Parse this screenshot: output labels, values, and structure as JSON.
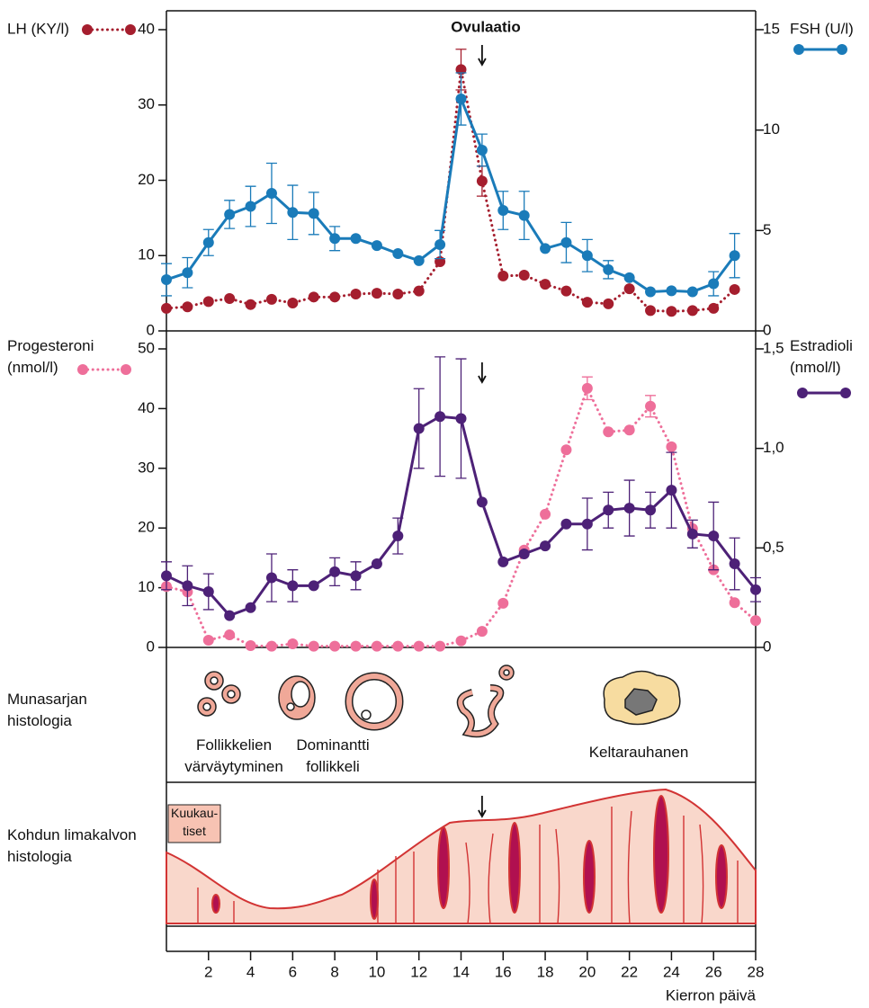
{
  "chart_data": [
    {
      "type": "line",
      "annotations": [
        {
          "text": "Ovulaatio",
          "x": 15
        }
      ],
      "xlim": [
        0,
        28
      ],
      "x": [
        0,
        1,
        2,
        3,
        4,
        5,
        6,
        7,
        8,
        9,
        10,
        11,
        12,
        13,
        14,
        15,
        16,
        17,
        18,
        19,
        20,
        21,
        22,
        23,
        24,
        25,
        26,
        27
      ],
      "ylim": [
        0,
        40
      ],
      "yticks": [
        0,
        10,
        20,
        30,
        40
      ],
      "y2lim": [
        0,
        15
      ],
      "y2ticks": [
        0,
        5,
        10,
        15
      ],
      "series": [
        {
          "name": "LH (KY/l)",
          "color": "#a51e2e",
          "linestyle": "dotted",
          "values": [
            3.0,
            3.2,
            3.9,
            4.3,
            3.5,
            4.2,
            3.7,
            4.5,
            4.5,
            4.9,
            5.0,
            4.9,
            5.3,
            9.2,
            34.7,
            19.9,
            7.3,
            7.4,
            6.2,
            5.3,
            3.8,
            3.6,
            5.6,
            2.7,
            2.6,
            2.7,
            3.0,
            5.5
          ],
          "errors": [
            null,
            null,
            null,
            null,
            null,
            null,
            null,
            null,
            null,
            null,
            null,
            null,
            null,
            null,
            2.7,
            2.0,
            null,
            null,
            null,
            null,
            null,
            null,
            null,
            null,
            null,
            null,
            null,
            null
          ]
        },
        {
          "name": "FSH (U/l)",
          "color": "#1a7bb9",
          "linestyle": "solid",
          "axis": "y2",
          "values": [
            2.55,
            2.9,
            4.4,
            5.8,
            6.2,
            6.85,
            5.9,
            5.85,
            4.6,
            4.6,
            4.25,
            3.85,
            3.5,
            4.3,
            11.55,
            9.0,
            6.0,
            5.75,
            4.1,
            4.4,
            3.75,
            3.05,
            2.65,
            1.95,
            2.0,
            1.95,
            2.35,
            3.75
          ],
          "errors": [
            0.8,
            0.75,
            0.65,
            0.7,
            1.0,
            1.5,
            1.35,
            1.05,
            0.6,
            null,
            null,
            null,
            null,
            0.7,
            1.3,
            0.8,
            0.95,
            1.2,
            null,
            1.0,
            0.8,
            0.45,
            null,
            null,
            null,
            null,
            0.6,
            1.1
          ]
        }
      ]
    },
    {
      "type": "line",
      "xlim": [
        0,
        28
      ],
      "xticks": [
        2,
        4,
        6,
        8,
        10,
        12,
        14,
        16,
        18,
        20,
        22,
        24,
        26,
        28
      ],
      "xlabel": "Kierron päivä",
      "annotations": [
        {
          "x": 15
        }
      ],
      "x": [
        0,
        1,
        2,
        3,
        4,
        5,
        6,
        7,
        8,
        9,
        10,
        11,
        12,
        13,
        14,
        15,
        16,
        17,
        18,
        19,
        20,
        21,
        22,
        23,
        24,
        25,
        26,
        27,
        28
      ],
      "ylim": [
        0,
        50
      ],
      "yticks": [
        0,
        10,
        20,
        30,
        40,
        50
      ],
      "y2lim": [
        0,
        1.5
      ],
      "y2ticks": [
        0,
        {
          "value": 0.5,
          "label": "0,5"
        },
        {
          "value": 1.0,
          "label": "1,0"
        },
        {
          "value": 1.5,
          "label": "1,5"
        }
      ],
      "series": [
        {
          "name": "Progesteroni (nmol/l)",
          "color": "#ee6f9a",
          "linestyle": "dotted",
          "values": [
            10.2,
            9.3,
            1.2,
            2.1,
            0.3,
            0.2,
            0.6,
            0.2,
            0.2,
            0.2,
            0.2,
            0.2,
            0.2,
            0.2,
            1.1,
            2.7,
            7.4,
            16.3,
            22.3,
            33.1,
            43.4,
            36.1,
            36.4,
            40.4,
            33.6,
            19.9,
            13.0,
            7.5,
            4.5
          ],
          "errors": [
            null,
            null,
            null,
            null,
            null,
            null,
            null,
            null,
            null,
            null,
            null,
            null,
            null,
            null,
            null,
            null,
            null,
            null,
            null,
            null,
            1.9,
            null,
            null,
            1.8,
            null,
            null,
            null,
            null,
            null
          ]
        },
        {
          "name": "Estradioli (nmol/l)",
          "color": "#4d2177",
          "linestyle": "solid",
          "axis": "y2",
          "values": [
            0.36,
            0.31,
            0.28,
            0.16,
            0.2,
            0.35,
            0.31,
            0.31,
            0.38,
            0.36,
            0.42,
            0.56,
            1.1,
            1.16,
            1.15,
            0.73,
            0.43,
            0.47,
            0.51,
            0.62,
            0.62,
            0.69,
            0.7,
            0.69,
            0.79,
            0.57,
            0.56,
            0.42,
            0.29
          ],
          "errors": [
            0.07,
            0.1,
            0.09,
            null,
            null,
            0.12,
            0.08,
            null,
            0.07,
            0.07,
            null,
            0.09,
            0.2,
            0.3,
            0.3,
            null,
            null,
            null,
            null,
            null,
            0.13,
            0.09,
            0.14,
            0.09,
            0.19,
            0.07,
            0.17,
            0.13,
            0.06
          ]
        }
      ]
    }
  ],
  "histology": {
    "ovary": {
      "label": "Munasarjan histologia",
      "stages": [
        "Follikkelien värväytyminen",
        "Dominantti follikkeli",
        "Keltarauhanen"
      ]
    },
    "endometrium": {
      "label": "Kohdun limakalvon histologia",
      "menstruation": "Kuukau-tiset"
    }
  }
}
